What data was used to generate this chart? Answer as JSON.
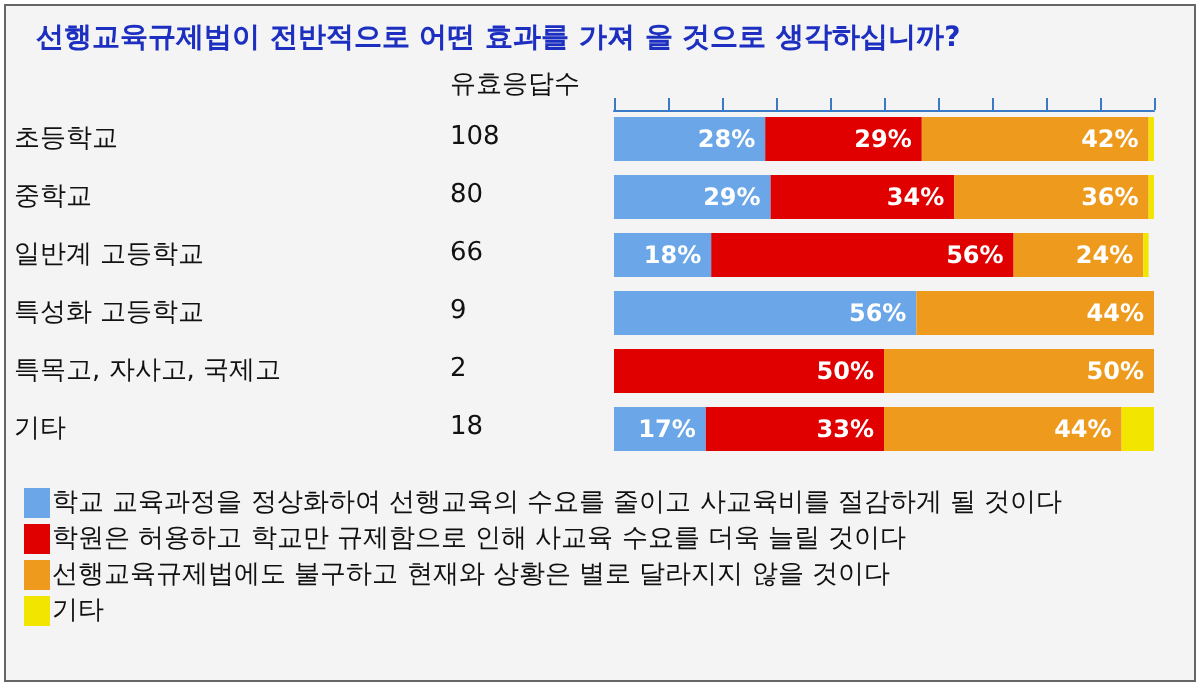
{
  "chart_data": {
    "type": "bar",
    "orientation": "horizontal",
    "stacked": true,
    "title": "선행교육규제법이 전반적으로 어떤 효과를 가져 올 것으로 생각하십니까?",
    "categories": [
      "초등학교",
      "중학교",
      "일반계 고등학교",
      "특성화 고등학교",
      "특목고, 자사고, 국제고",
      "기타"
    ],
    "series": [
      {
        "name": "학교 교육과정을 정상화하여 선행교육의 수요를 줄이고 사교육비를 절감하게 될 것이다",
        "color": "#6aa6e8",
        "values": [
          28,
          29,
          18,
          56,
          0,
          17
        ],
        "value_labels": [
          "28%",
          "29%",
          "18%",
          "56%",
          null,
          "17%"
        ]
      },
      {
        "name": "학원은 허용하고 학교만 규제함으로 인해 사교육 수요를 더욱 늘릴 것이다",
        "color": "#e00000",
        "values": [
          29,
          34,
          56,
          0,
          50,
          33
        ],
        "value_labels": [
          "29%",
          "34%",
          "56%",
          null,
          "50%",
          "33%"
        ]
      },
      {
        "name": "선행교육규제법에도 불구하고 현재와 상황은 별로 달라지지 않을 것이다",
        "color": "#ee9a1c",
        "values": [
          42,
          36,
          24,
          44,
          50,
          44
        ],
        "value_labels": [
          "42%",
          "36%",
          "24%",
          "44%",
          "50%",
          "44%"
        ]
      },
      {
        "name": "기타",
        "color": "#f2e600",
        "values": [
          1,
          1,
          1,
          0,
          0,
          6
        ],
        "value_labels": [
          null,
          null,
          null,
          null,
          null,
          null
        ]
      }
    ],
    "xlim": [
      0,
      100
    ],
    "xticks": [
      {
        "value": 0,
        "label": null
      },
      {
        "value": 10,
        "label": null
      },
      {
        "value": 20,
        "label": null
      },
      {
        "value": 30,
        "label": null
      },
      {
        "value": 40,
        "label": null
      },
      {
        "value": 50,
        "label": null
      },
      {
        "value": 60,
        "label": null
      },
      {
        "value": 70,
        "label": null
      },
      {
        "value": 80,
        "label": null
      },
      {
        "value": 90,
        "label": null
      },
      {
        "value": 100,
        "label": null
      }
    ],
    "tick_labels": "y",
    "annotations": [
      "유효응답수",
      "108",
      "80",
      "66",
      "9",
      "2",
      "18"
    ],
    "legend": "bottom",
    "grid": false
  }
}
